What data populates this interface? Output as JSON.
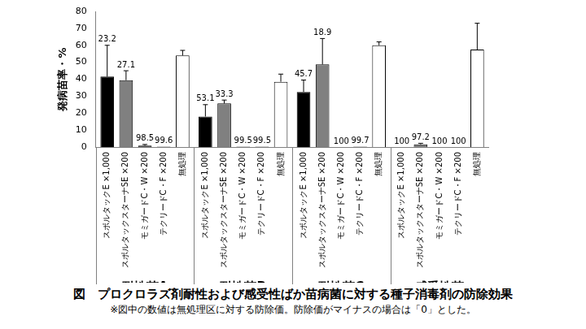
{
  "chart_data": {
    "type": "bar",
    "title": "図　プロクロラズ剤耐性および感受性ばか苗病菌に対する種子消毒剤の防除効果",
    "subtitle": "※図中の数値は無処理区に対する防除価。防除価がマイナスの場合は「0」とした。",
    "y_label": "発病苗率・%",
    "categories": [
      "耐性菌A",
      "耐性菌B",
      "耐性菌C",
      "感受性菌"
    ],
    "series": [
      {
        "name": "スポルタックE ×1,000",
        "color": "#000000",
        "values": [
          41.5,
          18,
          32.5,
          0
        ],
        "errors": [
          18.5,
          7,
          7,
          0
        ],
        "control_values": [
          23.2,
          53.1,
          45.7,
          100
        ]
      },
      {
        "name": "スポルタックスターナSE ×200",
        "color": "#808080",
        "values": [
          39.4,
          25.7,
          48.7,
          1.6
        ],
        "errors": [
          5.6,
          2,
          15.3,
          0.6
        ],
        "control_values": [
          27.1,
          33.3,
          18.9,
          97.2
        ]
      },
      {
        "name": "モミガードC・W ×200",
        "color": "#404040",
        "values": [
          0.8,
          0.2,
          0,
          0
        ],
        "errors": [
          0.7,
          0,
          0,
          0
        ],
        "control_values": [
          98.5,
          99.5,
          100,
          100
        ]
      },
      {
        "name": "テクリードC・F ×200",
        "color": "#404040",
        "values": [
          0.2,
          0.2,
          0.2,
          0
        ],
        "errors": [
          0,
          0,
          0,
          0
        ],
        "control_values": [
          99.6,
          99.5,
          99.7,
          100
        ]
      },
      {
        "name": "無処理",
        "color": "#ffffff",
        "values": [
          54,
          38.5,
          60,
          57.5
        ],
        "errors": [
          3,
          4.5,
          2,
          15.5
        ],
        "control_values": [
          null,
          null,
          null,
          null
        ]
      }
    ],
    "ylim": [
      0,
      80
    ],
    "yticks": [
      0,
      10,
      20,
      30,
      40,
      50,
      60,
      70,
      80
    ],
    "grid": false
  }
}
